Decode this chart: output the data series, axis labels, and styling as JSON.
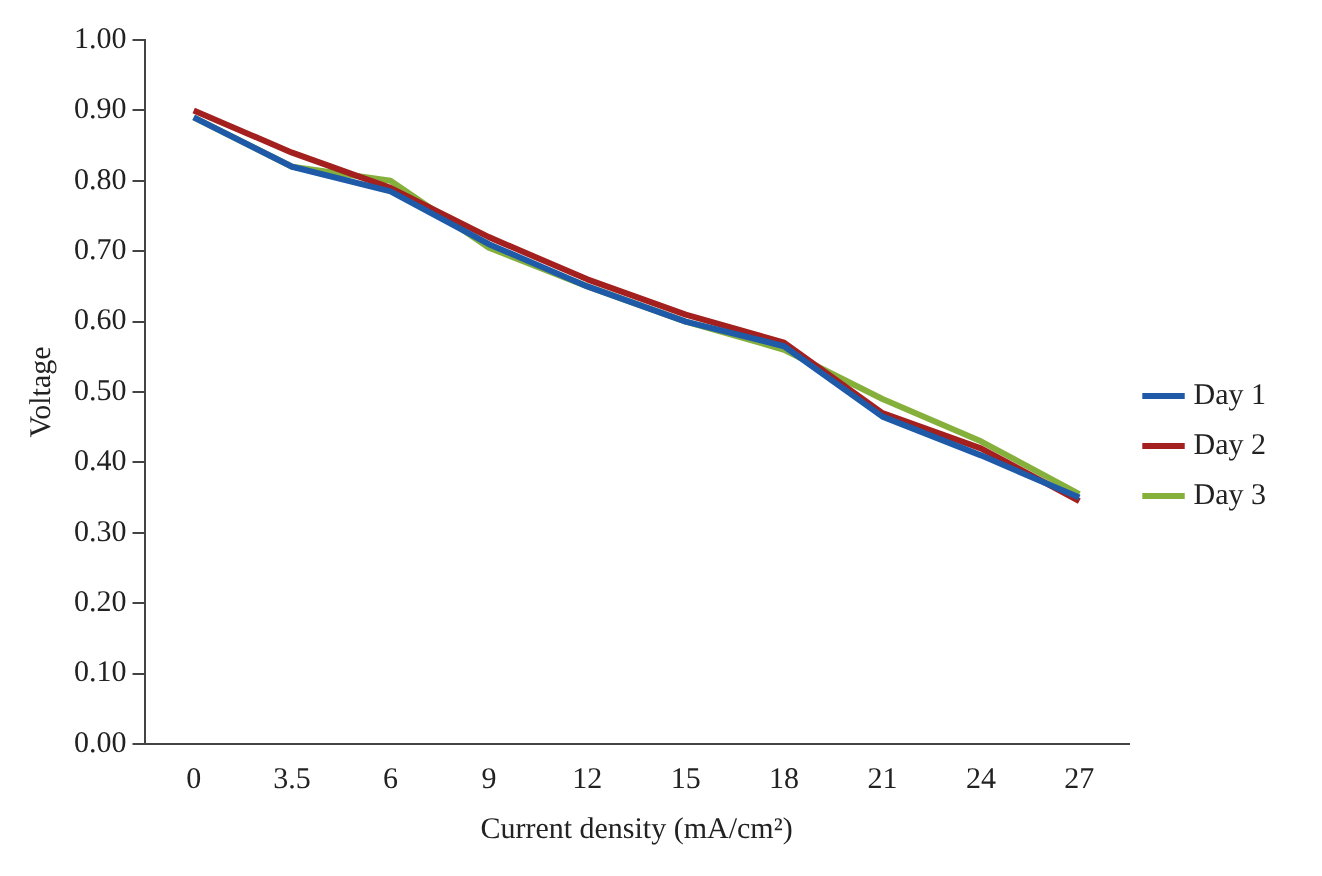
{
  "chart_data": {
    "type": "line",
    "xlabel": "Current density (mA/cm²)",
    "ylabel": "Voltage",
    "categories": [
      "0",
      "3.5",
      "6",
      "9",
      "12",
      "15",
      "18",
      "21",
      "24",
      "27"
    ],
    "series": [
      {
        "name": "Day 1",
        "color": "#1f5aa8",
        "values": [
          0.89,
          0.82,
          0.785,
          0.71,
          0.65,
          0.6,
          0.565,
          0.465,
          0.41,
          0.35
        ]
      },
      {
        "name": "Day 2",
        "color": "#a3201f",
        "values": [
          0.9,
          0.84,
          0.79,
          0.72,
          0.66,
          0.61,
          0.57,
          0.47,
          0.42,
          0.345
        ]
      },
      {
        "name": "Day 3",
        "color": "#86b03c",
        "values": [
          0.89,
          0.82,
          0.8,
          0.705,
          0.65,
          0.6,
          0.56,
          0.49,
          0.43,
          0.355
        ]
      }
    ],
    "ylim": [
      0,
      1
    ],
    "yticks": [
      {
        "value": 0,
        "label": "0.00"
      },
      {
        "value": 0.1,
        "label": "0.10"
      },
      {
        "value": 0.2,
        "label": "0.20"
      },
      {
        "value": 0.3,
        "label": "0.30"
      },
      {
        "value": 0.4,
        "label": "0.40"
      },
      {
        "value": 0.5,
        "label": "0.50"
      },
      {
        "value": 0.6,
        "label": "0.60"
      },
      {
        "value": 0.7,
        "label": "0.70"
      },
      {
        "value": 0.8,
        "label": "0.80"
      },
      {
        "value": 0.9,
        "label": "0.90"
      },
      {
        "value": 1,
        "label": "1.00"
      }
    ],
    "grid": false,
    "legend": "right",
    "marker": "none",
    "line_style": "solid"
  }
}
